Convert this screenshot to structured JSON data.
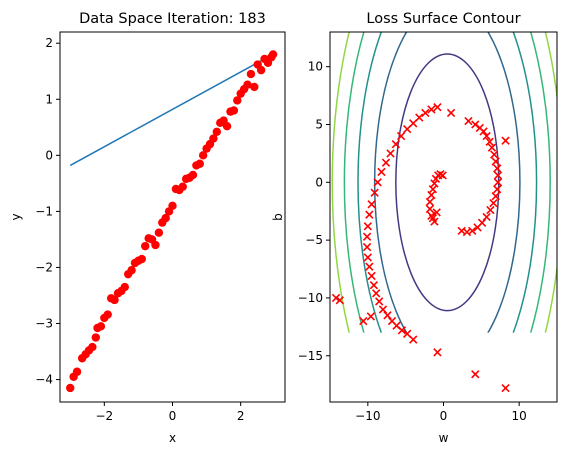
{
  "chart_data": [
    {
      "type": "scatter",
      "title": "Data Space Iteration: 183",
      "xlabel": "x",
      "ylabel": "y",
      "xlim": [
        -3.3,
        3.3
      ],
      "ylim": [
        -4.4,
        2.2
      ],
      "xticks": [
        -2,
        0,
        2
      ],
      "yticks": [
        -4,
        -3,
        -2,
        -1,
        0,
        1,
        2
      ],
      "colors": {
        "points": "#ff0000",
        "line": "#1f77b4"
      },
      "line": {
        "x": [
          -3.0,
          3.0
        ],
        "y": [
          -0.18,
          1.82
        ]
      },
      "points": [
        [
          -3.0,
          -4.15
        ],
        [
          -2.9,
          -3.95
        ],
        [
          -2.8,
          -3.86
        ],
        [
          -2.65,
          -3.62
        ],
        [
          -2.55,
          -3.55
        ],
        [
          -2.45,
          -3.48
        ],
        [
          -2.35,
          -3.42
        ],
        [
          -2.25,
          -3.25
        ],
        [
          -2.2,
          -3.08
        ],
        [
          -2.1,
          -3.05
        ],
        [
          -2.0,
          -2.9
        ],
        [
          -1.9,
          -2.84
        ],
        [
          -1.8,
          -2.55
        ],
        [
          -1.7,
          -2.58
        ],
        [
          -1.6,
          -2.46
        ],
        [
          -1.5,
          -2.42
        ],
        [
          -1.4,
          -2.35
        ],
        [
          -1.3,
          -2.12
        ],
        [
          -1.2,
          -2.05
        ],
        [
          -1.1,
          -1.92
        ],
        [
          -1.0,
          -1.88
        ],
        [
          -0.9,
          -1.85
        ],
        [
          -0.8,
          -1.62
        ],
        [
          -0.7,
          -1.48
        ],
        [
          -0.6,
          -1.5
        ],
        [
          -0.5,
          -1.6
        ],
        [
          -0.4,
          -1.38
        ],
        [
          -0.3,
          -1.2
        ],
        [
          -0.2,
          -1.12
        ],
        [
          -0.1,
          -1.0
        ],
        [
          0.0,
          -0.9
        ],
        [
          0.1,
          -0.6
        ],
        [
          0.2,
          -0.62
        ],
        [
          0.3,
          -0.56
        ],
        [
          0.4,
          -0.42
        ],
        [
          0.5,
          -0.4
        ],
        [
          0.6,
          -0.35
        ],
        [
          0.7,
          -0.18
        ],
        [
          0.8,
          -0.15
        ],
        [
          0.9,
          0.0
        ],
        [
          1.0,
          0.12
        ],
        [
          1.1,
          0.2
        ],
        [
          1.2,
          0.3
        ],
        [
          1.3,
          0.42
        ],
        [
          1.4,
          0.58
        ],
        [
          1.5,
          0.62
        ],
        [
          1.6,
          0.52
        ],
        [
          1.7,
          0.78
        ],
        [
          1.8,
          0.8
        ],
        [
          1.9,
          0.98
        ],
        [
          2.0,
          1.1
        ],
        [
          2.1,
          1.18
        ],
        [
          2.2,
          1.26
        ],
        [
          2.3,
          1.45
        ],
        [
          2.4,
          1.22
        ],
        [
          2.5,
          1.62
        ],
        [
          2.6,
          1.52
        ],
        [
          2.7,
          1.72
        ],
        [
          2.8,
          1.65
        ],
        [
          2.9,
          1.75
        ],
        [
          2.95,
          1.8
        ]
      ]
    },
    {
      "type": "contour",
      "title": "Loss Surface Contour",
      "xlabel": "w",
      "ylabel": "b",
      "xlim": [
        -15,
        15
      ],
      "ylim": [
        -19,
        13
      ],
      "xticks": [
        -10,
        0,
        10
      ],
      "yticks": [
        -15,
        -10,
        -5,
        0,
        5,
        10
      ],
      "contour_region": {
        "w": [
          -15,
          15
        ],
        "b": [
          -13,
          13
        ]
      },
      "contour_center": {
        "w": 0.5,
        "b": 0.0
      },
      "contour_levels": [
        {
          "rw": 6.8,
          "rb": 11.1,
          "color": "#443983"
        },
        {
          "rw": 9.6,
          "rb": 15.7,
          "color": "#31688e"
        },
        {
          "rw": 11.8,
          "rb": 19.3,
          "color": "#21918c"
        },
        {
          "rw": 13.6,
          "rb": 22.2,
          "color": "#35b779"
        },
        {
          "rw": 15.2,
          "rb": 24.9,
          "color": "#90d743"
        }
      ],
      "marker_color": "#ff0000",
      "trajectory": [
        [
          8.2,
          -17.8
        ],
        [
          4.2,
          -16.6
        ],
        [
          -0.8,
          -14.7
        ],
        [
          -14.2,
          -10.0
        ],
        [
          -13.7,
          -10.2
        ],
        [
          -4.0,
          -13.6
        ],
        [
          -4.8,
          -13.1
        ],
        [
          -5.5,
          -12.8
        ],
        [
          -6.2,
          -12.4
        ],
        [
          -6.8,
          -12.0
        ],
        [
          -7.4,
          -11.5
        ],
        [
          -8.0,
          -11.0
        ],
        [
          -8.5,
          -10.3
        ],
        [
          -8.9,
          -9.6
        ],
        [
          -9.2,
          -8.9
        ],
        [
          -9.5,
          -8.1
        ],
        [
          -9.8,
          -7.3
        ],
        [
          -10.0,
          -6.5
        ],
        [
          -10.1,
          -5.6
        ],
        [
          -10.1,
          -4.7
        ],
        [
          -10.0,
          -3.8
        ],
        [
          -9.8,
          -2.8
        ],
        [
          -9.5,
          -1.9
        ],
        [
          -9.1,
          -0.9
        ],
        [
          -8.7,
          0.0
        ],
        [
          -8.2,
          0.9
        ],
        [
          -7.6,
          1.7
        ],
        [
          -7.0,
          2.5
        ],
        [
          -6.3,
          3.3
        ],
        [
          -5.6,
          4.0
        ],
        [
          -4.8,
          4.6
        ],
        [
          -4.0,
          5.1
        ],
        [
          -3.2,
          5.6
        ],
        [
          -2.4,
          6.0
        ],
        [
          -1.6,
          6.3
        ],
        [
          -0.8,
          6.5
        ],
        [
          -10.6,
          -12.0
        ],
        [
          -9.6,
          -11.6
        ],
        [
          1.0,
          6.0
        ],
        [
          3.3,
          5.3
        ],
        [
          4.2,
          5.0
        ],
        [
          4.8,
          4.7
        ],
        [
          5.3,
          4.4
        ],
        [
          5.7,
          4.0
        ],
        [
          6.1,
          3.5
        ],
        [
          6.4,
          3.0
        ],
        [
          6.7,
          2.4
        ],
        [
          6.9,
          1.8
        ],
        [
          7.1,
          1.2
        ],
        [
          7.2,
          0.6
        ],
        [
          7.2,
          0.0
        ],
        [
          7.1,
          -0.6
        ],
        [
          6.9,
          -1.2
        ],
        [
          6.6,
          -1.8
        ],
        [
          6.2,
          -2.4
        ],
        [
          5.7,
          -3.0
        ],
        [
          5.1,
          -3.5
        ],
        [
          4.5,
          -3.9
        ],
        [
          3.8,
          -4.2
        ],
        [
          3.1,
          -4.3
        ],
        [
          2.4,
          -4.2
        ],
        [
          8.2,
          3.6
        ],
        [
          -1.2,
          -3.4
        ],
        [
          -1.6,
          -2.9
        ],
        [
          -1.8,
          -2.3
        ],
        [
          -1.8,
          -1.7
        ],
        [
          -1.6,
          -1.1
        ],
        [
          -1.4,
          -0.6
        ],
        [
          -1.2,
          -0.1
        ],
        [
          -1.0,
          0.3
        ],
        [
          -0.7,
          0.6
        ],
        [
          -0.4,
          0.7
        ],
        [
          -0.1,
          0.6
        ],
        [
          -0.9,
          -2.6
        ],
        [
          -1.4,
          -3.1
        ]
      ]
    }
  ]
}
